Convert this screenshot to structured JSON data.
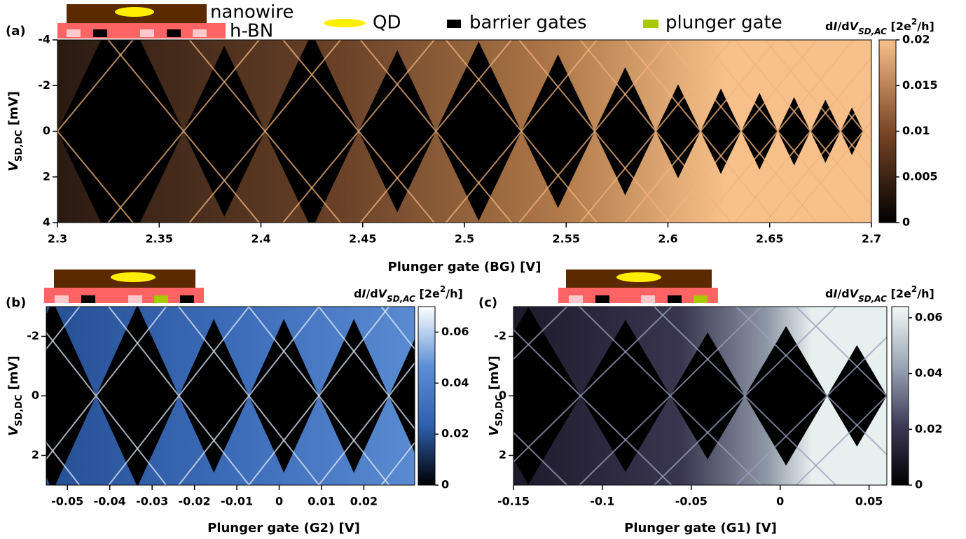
{
  "device_labels": [
    "nanowire",
    "h-BN"
  ],
  "legend": [
    "QD",
    "barrier gates",
    "plunger gate"
  ],
  "chart_data": [
    {
      "type": "heatmap",
      "panel": "(a)",
      "xlabel": "Plunger gate (BG) [V]",
      "ylabel": {
        "symbol": "V",
        "subscript": "SD,DC",
        "unit": " [mV]"
      },
      "xlim": [
        2.3,
        2.7
      ],
      "xticks": [
        2.3,
        2.35,
        2.4,
        2.45,
        2.5,
        2.55,
        2.6,
        2.65,
        2.7
      ],
      "ylim": [
        -4,
        4
      ],
      "yticks": [
        -4,
        -2,
        0,
        2,
        4
      ],
      "y_inverted": true,
      "colorbar": {
        "label": [
          {
            "text": "d"
          },
          {
            "text": "I",
            "style": "italic"
          },
          {
            "text": "/d"
          },
          {
            "text": "V",
            "style": "italic"
          },
          {
            "text": "SD,AC",
            "style": "sub"
          },
          {
            "text": " [2e"
          },
          {
            "text": "2",
            "style": "sup"
          },
          {
            "text": "/h]"
          }
        ],
        "lim": [
          0,
          0.02
        ],
        "ticks": [
          0,
          0.005,
          0.01,
          0.015,
          0.02
        ],
        "colors": [
          "#000000",
          "#7a4626",
          "#f7c08a"
        ]
      }
    },
    {
      "type": "heatmap",
      "panel": "(b)",
      "xlabel": "Plunger gate (G2) [V]",
      "ylabel": {
        "symbol": "V",
        "subscript": "SD,DC",
        "unit": " [mV]"
      },
      "xlim": [
        -0.055,
        0.032
      ],
      "xticks": [
        -0.05,
        -0.04,
        -0.03,
        -0.02,
        -0.01,
        0,
        0.01,
        0.02
      ],
      "ylim": [
        -3,
        3
      ],
      "yticks": [
        -2,
        0,
        2
      ],
      "y_inverted": true,
      "colorbar": {
        "label": [
          {
            "text": "d"
          },
          {
            "text": "I",
            "style": "italic"
          },
          {
            "text": "/d"
          },
          {
            "text": "V",
            "style": "italic"
          },
          {
            "text": "SD,AC",
            "style": "sub"
          },
          {
            "text": " [2e"
          },
          {
            "text": "2",
            "style": "sup"
          },
          {
            "text": "/h]"
          }
        ],
        "lim": [
          0,
          0.07
        ],
        "ticks": [
          0,
          0.02,
          0.04,
          0.06
        ],
        "colors": [
          "#000000",
          "#2f5fae",
          "#5b8fd6",
          "#ffffff"
        ]
      }
    },
    {
      "type": "heatmap",
      "panel": "(c)",
      "xlabel": "Plunger gate (G1) [V]",
      "ylabel": {
        "symbol": "V",
        "subscript": "SD,DC",
        "unit": " [mV]"
      },
      "xlim": [
        -0.15,
        0.06
      ],
      "xticks": [
        -0.15,
        -0.1,
        -0.05,
        0,
        0.05
      ],
      "ylim": [
        -3,
        3
      ],
      "yticks": [
        -2,
        0,
        2
      ],
      "y_inverted": true,
      "colorbar": {
        "label": [
          {
            "text": "d"
          },
          {
            "text": "I",
            "style": "italic"
          },
          {
            "text": "/d"
          },
          {
            "text": "V",
            "style": "italic"
          },
          {
            "text": "SD,AC",
            "style": "sub"
          },
          {
            "text": " [2e"
          },
          {
            "text": "2",
            "style": "sup"
          },
          {
            "text": "/h]"
          }
        ],
        "lim": [
          0,
          0.064
        ],
        "ticks": [
          0,
          0.02,
          0.04,
          0.06
        ],
        "colors": [
          "#000000",
          "#3e3a58",
          "#9aa6b4",
          "#f2f8f6"
        ]
      }
    }
  ]
}
